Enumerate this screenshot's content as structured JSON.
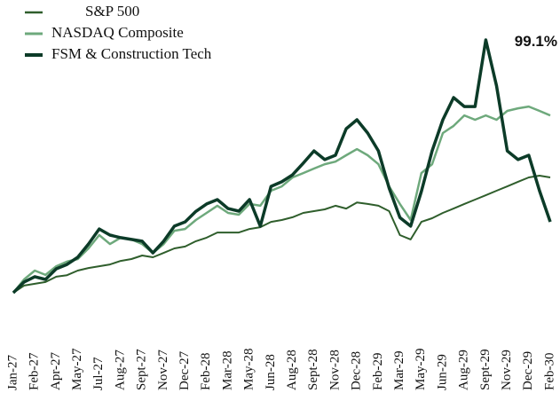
{
  "chart_data": {
    "type": "line",
    "annotation": "99.1%",
    "categories": [
      "Jan-27",
      null,
      "Feb-27",
      null,
      "Apr-27",
      null,
      "May-27",
      null,
      "Jul-27",
      null,
      "Aug-27",
      null,
      "Sept-27",
      null,
      "Nov-27",
      null,
      "Dec-27",
      null,
      "Feb-28",
      null,
      "Mar-28",
      null,
      "May-28",
      null,
      "Jun-28",
      null,
      "Aug-28",
      null,
      "Sept-28",
      null,
      "Nov-28",
      null,
      "Dec-28",
      null,
      "Feb-29",
      null,
      "Mar-29",
      null,
      "May-29",
      null,
      "Jun-29",
      null,
      "Aug-29",
      null,
      "Sept-29",
      null,
      "Nov-29",
      null,
      "Dec-29",
      null,
      "Feb-30"
    ],
    "series": [
      {
        "name": "S&P 500",
        "color": "#2f5e2c",
        "width": 2,
        "values": [
          0,
          2.8,
          3.5,
          4.2,
          6.3,
          6.9,
          8.7,
          9.7,
          10.4,
          11.1,
          12.5,
          13.2,
          14.6,
          13.9,
          15.6,
          17.4,
          18.1,
          20.2,
          21.6,
          23.6,
          23.6,
          23.6,
          25.0,
          25.7,
          27.8,
          28.5,
          29.6,
          31.3,
          32.0,
          32.7,
          34.1,
          33.0,
          35.4,
          34.8,
          34.1,
          32.0,
          22.6,
          20.9,
          27.8,
          29.2,
          31.3,
          33.0,
          34.8,
          36.5,
          38.2,
          40.0,
          41.7,
          43.5,
          45.2,
          45.9,
          45.2
        ]
      },
      {
        "name": "NASDAQ Composite",
        "color": "#6ea97c",
        "width": 2.5,
        "values": [
          0,
          5.2,
          8.7,
          7.0,
          10.4,
          12.2,
          13.2,
          17.4,
          22.6,
          19.1,
          21.6,
          20.9,
          19.1,
          15.6,
          19.1,
          24.3,
          25.0,
          28.5,
          31.3,
          34.1,
          31.3,
          30.6,
          34.8,
          34.1,
          40.0,
          41.7,
          45.2,
          46.9,
          48.7,
          50.4,
          51.4,
          53.9,
          56.3,
          53.9,
          50.4,
          41.7,
          34.8,
          28.5,
          46.9,
          50.4,
          62.6,
          65.4,
          69.5,
          67.8,
          69.5,
          67.8,
          71.3,
          72.3,
          73.0,
          71.3,
          69.5
        ]
      },
      {
        "name": "FSM & Construction Tech",
        "color": "#0c3b28",
        "width": 3.5,
        "values": [
          0,
          4.2,
          6.3,
          5.2,
          9.4,
          11.1,
          13.9,
          19.1,
          25.0,
          22.6,
          21.6,
          20.9,
          20.2,
          15.6,
          20.2,
          26.1,
          27.8,
          31.9,
          34.8,
          36.5,
          33.0,
          32.0,
          36.5,
          26.1,
          41.7,
          43.5,
          46.2,
          50.8,
          55.6,
          52.2,
          53.9,
          64.3,
          67.8,
          62.6,
          55.6,
          41.0,
          29.5,
          26.1,
          39.7,
          55.6,
          67.8,
          76.5,
          73.0,
          73.0,
          99.1,
          81.1,
          55.6,
          52.2,
          53.9,
          40.0,
          27.8
        ]
      }
    ],
    "ylim": [
      -2,
      103
    ]
  }
}
